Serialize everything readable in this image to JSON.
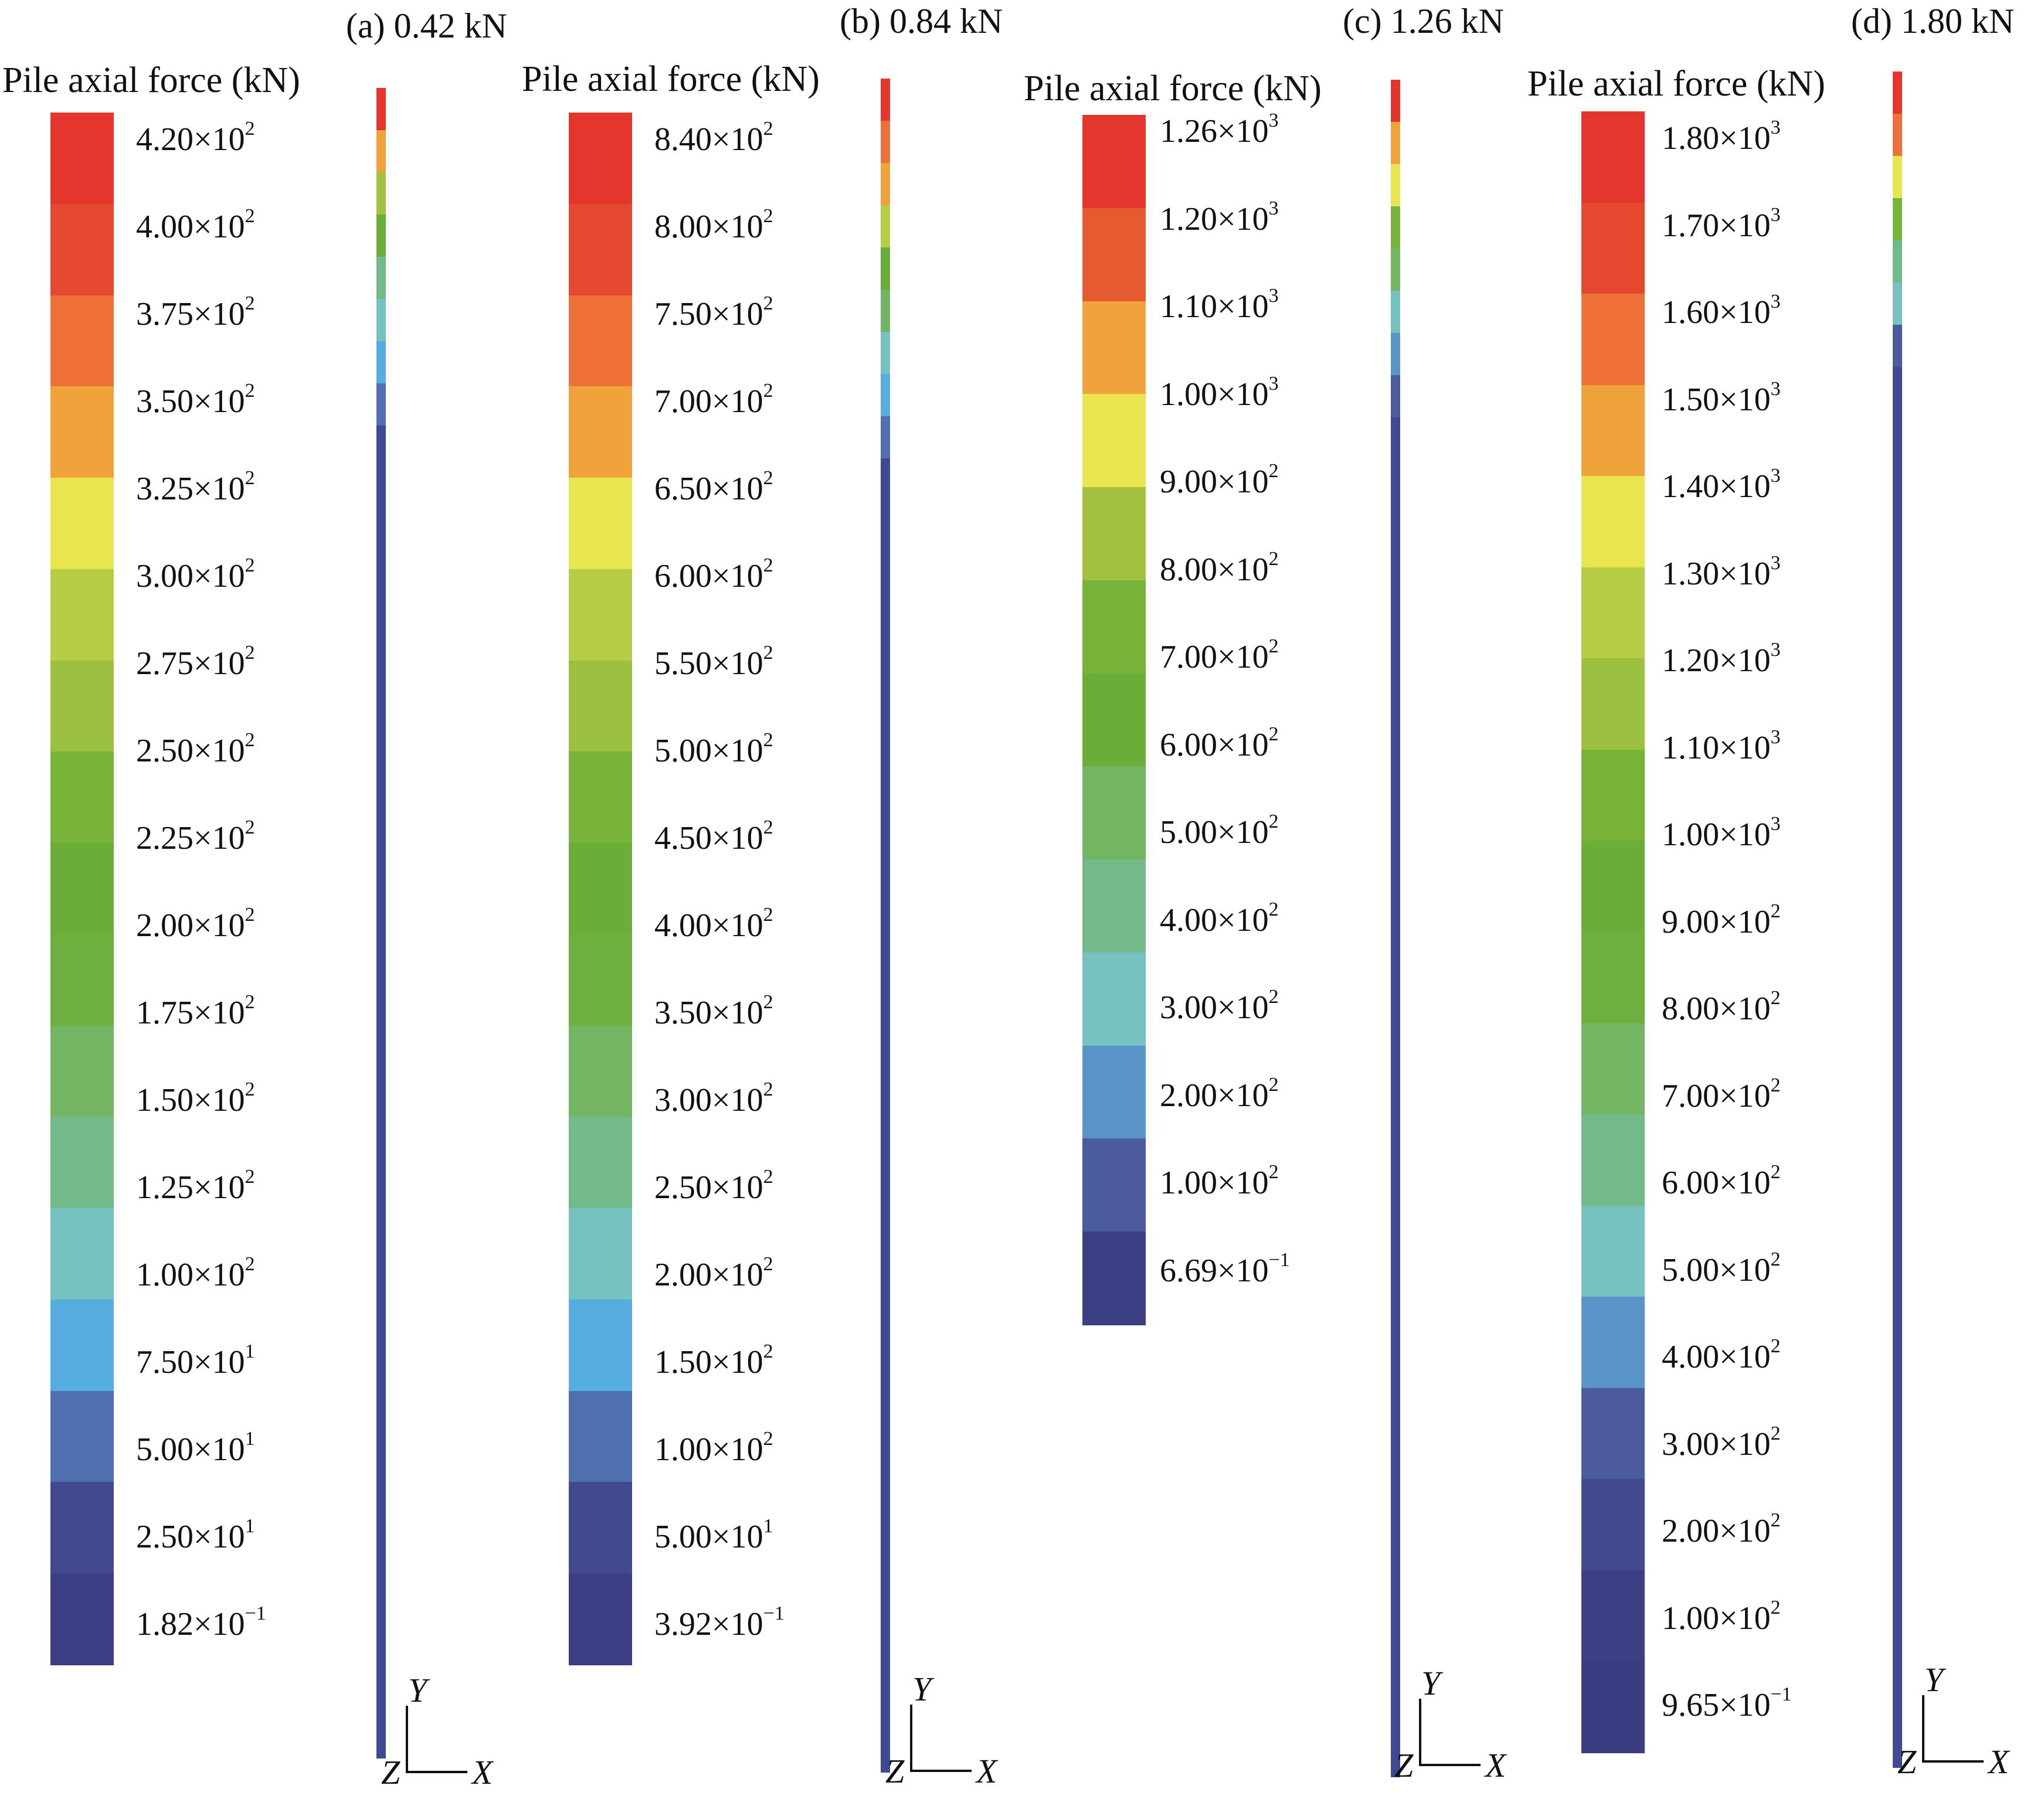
{
  "panels": [
    {
      "title": "(a) 0.42 kN",
      "legend_title": "Pile axial force (kN)",
      "ticks": [
        {
          "m": "4.20",
          "e": "2"
        },
        {
          "m": "4.00",
          "e": "2"
        },
        {
          "m": "3.75",
          "e": "2"
        },
        {
          "m": "3.50",
          "e": "2"
        },
        {
          "m": "3.25",
          "e": "2"
        },
        {
          "m": "3.00",
          "e": "2"
        },
        {
          "m": "2.75",
          "e": "2"
        },
        {
          "m": "2.50",
          "e": "2"
        },
        {
          "m": "2.25",
          "e": "2"
        },
        {
          "m": "2.00",
          "e": "2"
        },
        {
          "m": "1.75",
          "e": "2"
        },
        {
          "m": "1.50",
          "e": "2"
        },
        {
          "m": "1.25",
          "e": "2"
        },
        {
          "m": "1.00",
          "e": "2"
        },
        {
          "m": "7.50",
          "e": "1"
        },
        {
          "m": "5.00",
          "e": "1"
        },
        {
          "m": "2.50",
          "e": "1"
        },
        {
          "m": "1.82",
          "e": "−1"
        }
      ],
      "colors": [
        "#e4362d",
        "#e4482e",
        "#ee7138",
        "#f0a33a",
        "#e8e64e",
        "#b6cd44",
        "#9bc13f",
        "#78b43a",
        "#6aae38",
        "#6db040",
        "#74b564",
        "#73b98a",
        "#76c2c0",
        "#55ade0",
        "#4f6fae",
        "#42498f",
        "#3d3f85"
      ],
      "pile_colors": [
        "#e4362d",
        "#f0a33a",
        "#a3c13e",
        "#6aae38",
        "#73b98a",
        "#76c2c0",
        "#55ade0",
        "#4f6fae",
        "#3f4a92"
      ],
      "axes": {
        "y": "Y",
        "z": "Z",
        "x": "X"
      }
    },
    {
      "title": "(b) 0.84 kN",
      "legend_title": "Pile axial force (kN)",
      "ticks": [
        {
          "m": "8.40",
          "e": "2"
        },
        {
          "m": "8.00",
          "e": "2"
        },
        {
          "m": "7.50",
          "e": "2"
        },
        {
          "m": "7.00",
          "e": "2"
        },
        {
          "m": "6.50",
          "e": "2"
        },
        {
          "m": "6.00",
          "e": "2"
        },
        {
          "m": "5.50",
          "e": "2"
        },
        {
          "m": "5.00",
          "e": "2"
        },
        {
          "m": "4.50",
          "e": "2"
        },
        {
          "m": "4.00",
          "e": "2"
        },
        {
          "m": "3.50",
          "e": "2"
        },
        {
          "m": "3.00",
          "e": "2"
        },
        {
          "m": "2.50",
          "e": "2"
        },
        {
          "m": "2.00",
          "e": "2"
        },
        {
          "m": "1.50",
          "e": "2"
        },
        {
          "m": "1.00",
          "e": "2"
        },
        {
          "m": "5.00",
          "e": "1"
        },
        {
          "m": "3.92",
          "e": "−1"
        }
      ],
      "colors": [
        "#e4362d",
        "#e4482e",
        "#ee7138",
        "#f0a33a",
        "#e8e64e",
        "#b6cd44",
        "#9bc13f",
        "#78b43a",
        "#6aae38",
        "#6db040",
        "#74b564",
        "#73b98a",
        "#76c2c0",
        "#55ade0",
        "#4f6fae",
        "#42498f",
        "#3d3f85"
      ],
      "pile_colors": [
        "#e4362d",
        "#ee7138",
        "#f0a33a",
        "#b6cd44",
        "#6aae38",
        "#74b564",
        "#76c2c0",
        "#55ade0",
        "#4f6fae",
        "#3f4a92"
      ],
      "axes": {
        "y": "Y",
        "z": "Z",
        "x": "X"
      }
    },
    {
      "title": "(c) 1.26 kN",
      "legend_title": "Pile axial force (kN)",
      "ticks": [
        {
          "m": "1.26",
          "e": "3"
        },
        {
          "m": "1.20",
          "e": "3"
        },
        {
          "m": "1.10",
          "e": "3"
        },
        {
          "m": "1.00",
          "e": "3"
        },
        {
          "m": "9.00",
          "e": "2"
        },
        {
          "m": "8.00",
          "e": "2"
        },
        {
          "m": "7.00",
          "e": "2"
        },
        {
          "m": "6.00",
          "e": "2"
        },
        {
          "m": "5.00",
          "e": "2"
        },
        {
          "m": "4.00",
          "e": "2"
        },
        {
          "m": "3.00",
          "e": "2"
        },
        {
          "m": "2.00",
          "e": "2"
        },
        {
          "m": "1.00",
          "e": "2"
        },
        {
          "m": "6.69",
          "e": "−1"
        }
      ],
      "colors": [
        "#e4362d",
        "#e65a31",
        "#f0a33a",
        "#e8e64e",
        "#a3c13e",
        "#78b43a",
        "#6aae38",
        "#74b564",
        "#73b98a",
        "#76c2c0",
        "#5b94c8",
        "#4a5c9e",
        "#3d3f85"
      ],
      "pile_colors": [
        "#e4362d",
        "#f0a33a",
        "#e8e64e",
        "#78b43a",
        "#74b564",
        "#76c2c0",
        "#5b94c8",
        "#4a5c9e",
        "#3f4a92"
      ],
      "axes": {
        "y": "Y",
        "z": "Z",
        "x": "X"
      }
    },
    {
      "title": "(d) 1.80 kN",
      "legend_title": "Pile axial force (kN)",
      "ticks": [
        {
          "m": "1.80",
          "e": "3"
        },
        {
          "m": "1.70",
          "e": "3"
        },
        {
          "m": "1.60",
          "e": "3"
        },
        {
          "m": "1.50",
          "e": "3"
        },
        {
          "m": "1.40",
          "e": "3"
        },
        {
          "m": "1.30",
          "e": "3"
        },
        {
          "m": "1.20",
          "e": "3"
        },
        {
          "m": "1.10",
          "e": "3"
        },
        {
          "m": "1.00",
          "e": "3"
        },
        {
          "m": "9.00",
          "e": "2"
        },
        {
          "m": "8.00",
          "e": "2"
        },
        {
          "m": "7.00",
          "e": "2"
        },
        {
          "m": "6.00",
          "e": "2"
        },
        {
          "m": "5.00",
          "e": "2"
        },
        {
          "m": "4.00",
          "e": "2"
        },
        {
          "m": "3.00",
          "e": "2"
        },
        {
          "m": "2.00",
          "e": "2"
        },
        {
          "m": "1.00",
          "e": "2"
        },
        {
          "m": "9.65",
          "e": "−1"
        }
      ],
      "colors": [
        "#e4362d",
        "#e4482e",
        "#ee7138",
        "#f0a33a",
        "#e8e64e",
        "#b6cd44",
        "#9bc13f",
        "#78b43a",
        "#6aae38",
        "#6db040",
        "#74b564",
        "#73b98a",
        "#76c2c0",
        "#5b94c8",
        "#4a5c9e",
        "#42498f",
        "#3d3f85",
        "#3b3d83"
      ],
      "pile_colors": [
        "#e4362d",
        "#ee7138",
        "#e8e64e",
        "#78b43a",
        "#73b98a",
        "#76c2c0",
        "#4a5c9e",
        "#3f4a92"
      ],
      "axes": {
        "y": "Y",
        "z": "Z",
        "x": "X"
      }
    }
  ]
}
